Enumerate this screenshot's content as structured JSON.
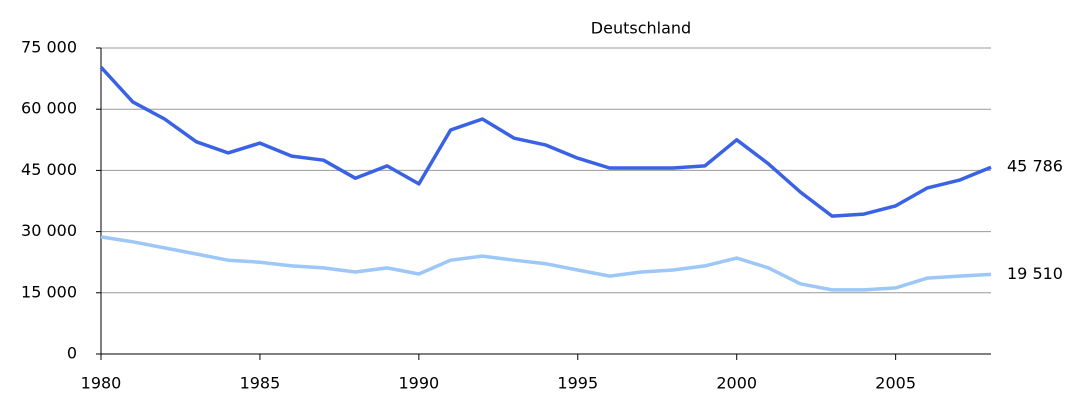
{
  "chart_data": {
    "type": "line",
    "title": "Deutschland",
    "x": [
      1980,
      1981,
      1982,
      1983,
      1984,
      1985,
      1986,
      1987,
      1988,
      1989,
      1990,
      1991,
      1992,
      1993,
      1994,
      1995,
      1996,
      1997,
      1998,
      1999,
      2000,
      2001,
      2002,
      2003,
      2004,
      2005,
      2006,
      2007,
      2008
    ],
    "series": [
      {
        "color": "#3a62e4",
        "values": [
          70300,
          61800,
          57600,
          52000,
          49300,
          51700,
          48500,
          47500,
          43100,
          46100,
          41700,
          54900,
          57600,
          52900,
          51200,
          48000,
          45600,
          45600,
          45600,
          46100,
          52500,
          46600,
          39700,
          33800,
          34300,
          36300,
          40700,
          42600,
          45786
        ],
        "value_labels": [
          null,
          null,
          null,
          null,
          null,
          null,
          null,
          null,
          null,
          null,
          null,
          null,
          null,
          null,
          null,
          null,
          null,
          null,
          null,
          null,
          null,
          null,
          null,
          null,
          null,
          null,
          null,
          null,
          "45 786"
        ]
      },
      {
        "color": "#9cc7f6",
        "values": [
          28700,
          27500,
          26000,
          24500,
          23000,
          22500,
          21600,
          21100,
          20100,
          21100,
          19600,
          23000,
          24000,
          23000,
          22100,
          20600,
          19100,
          20100,
          20600,
          21600,
          23500,
          21100,
          17200,
          15700,
          15700,
          16200,
          18600,
          19100,
          19510
        ],
        "value_labels": [
          null,
          null,
          null,
          null,
          null,
          null,
          null,
          null,
          null,
          null,
          null,
          null,
          null,
          null,
          null,
          null,
          null,
          null,
          null,
          null,
          null,
          null,
          null,
          null,
          null,
          null,
          null,
          null,
          "19 510"
        ]
      }
    ],
    "xlim": [
      1980,
      2008
    ],
    "xticks": [
      1980,
      1985,
      1990,
      1995,
      2000,
      2005
    ],
    "ylim": [
      0,
      75000
    ],
    "yticks": [
      0,
      {
        "value": 15000,
        "label": "15 000"
      },
      {
        "value": 30000,
        "label": "30 000"
      },
      {
        "value": 45000,
        "label": "45 000"
      },
      {
        "value": 60000,
        "label": "60 000"
      },
      {
        "value": 75000,
        "label": "75 000"
      }
    ],
    "grid": true
  }
}
